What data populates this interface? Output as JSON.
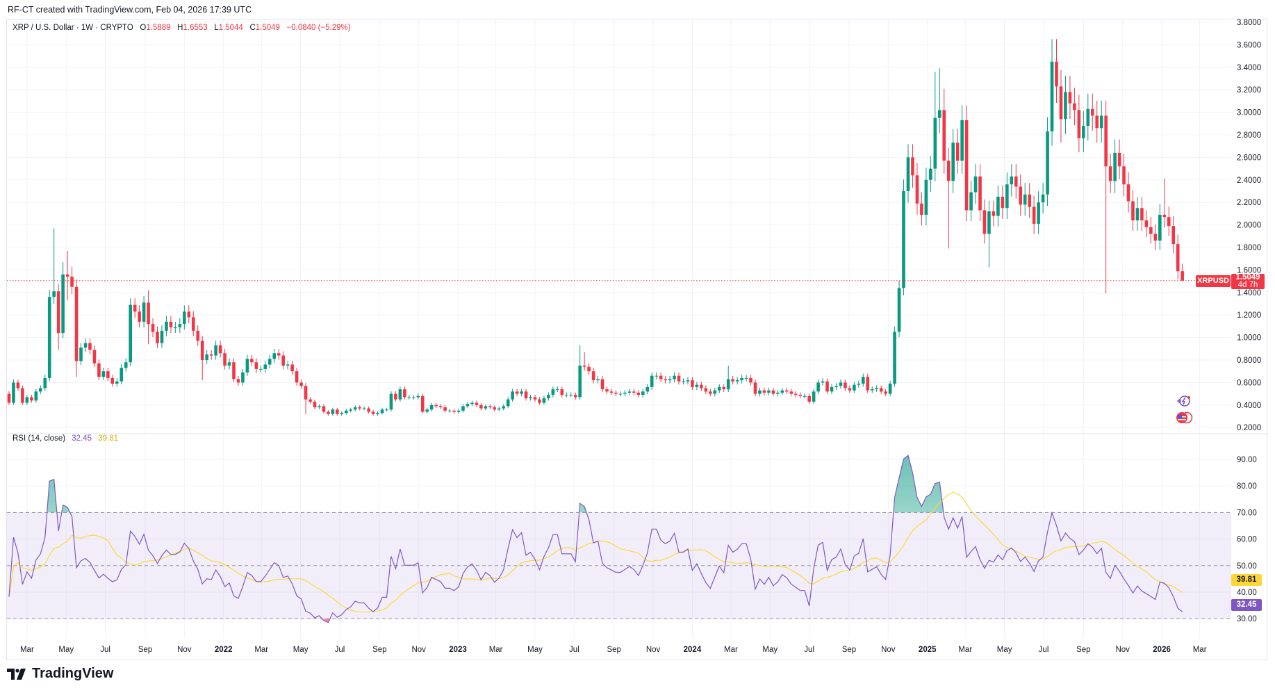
{
  "header": {
    "attribution": "RF-CT created with TradingView.com, Feb 04, 2026 17:39 UTC"
  },
  "legend": {
    "symbol": "XRP / U.S. Dollar · 1W · CRYPTO",
    "o_label": "O",
    "o": "1.5889",
    "h_label": "H",
    "h": "1.6553",
    "l_label": "L",
    "l": "1.5044",
    "c_label": "C",
    "c": "1.5049",
    "change": "−0.0840 (−5.29%)"
  },
  "rsi_legend": {
    "title": "RSI (14, close)",
    "rsi": "32.45",
    "ma": "39.81"
  },
  "price_tag": {
    "symbol": "XRPUSD",
    "price": "1.5049",
    "countdown": "4d 7h"
  },
  "logo": {
    "text": "TradingView"
  },
  "icons": [
    "ai-spark-icon",
    "us-flag-event-icon"
  ],
  "colors": {
    "up": "#089981",
    "down": "#F23645",
    "rsi": "#7E57C2",
    "rsi_ma": "#FDD835",
    "band": "#7E57C2"
  },
  "chart_data": [
    {
      "type": "candlestick",
      "interval": "1W",
      "x_start": "2021-02-01",
      "first_open": 0.5,
      "close": [
        0.42,
        0.6,
        0.55,
        0.42,
        0.47,
        0.44,
        0.52,
        0.55,
        0.64,
        1.36,
        1.41,
        1.04,
        1.56,
        1.54,
        1.45,
        0.79,
        0.91,
        0.95,
        0.89,
        0.77,
        0.65,
        0.7,
        0.64,
        0.59,
        0.61,
        0.73,
        0.78,
        1.29,
        1.23,
        1.14,
        1.31,
        1.12,
        1.05,
        0.95,
        1.06,
        1.14,
        1.09,
        1.09,
        1.12,
        1.23,
        1.18,
        1.06,
        0.97,
        0.8,
        0.85,
        0.84,
        0.93,
        0.86,
        0.75,
        0.78,
        0.63,
        0.6,
        0.69,
        0.81,
        0.78,
        0.72,
        0.72,
        0.76,
        0.81,
        0.86,
        0.84,
        0.75,
        0.76,
        0.7,
        0.6,
        0.57,
        0.45,
        0.43,
        0.38,
        0.39,
        0.34,
        0.32,
        0.36,
        0.32,
        0.33,
        0.35,
        0.36,
        0.38,
        0.37,
        0.37,
        0.34,
        0.32,
        0.33,
        0.36,
        0.36,
        0.5,
        0.45,
        0.54,
        0.47,
        0.47,
        0.47,
        0.48,
        0.34,
        0.36,
        0.4,
        0.39,
        0.38,
        0.35,
        0.35,
        0.34,
        0.35,
        0.39,
        0.41,
        0.42,
        0.4,
        0.37,
        0.39,
        0.38,
        0.36,
        0.37,
        0.39,
        0.45,
        0.52,
        0.5,
        0.52,
        0.46,
        0.47,
        0.45,
        0.42,
        0.46,
        0.49,
        0.54,
        0.54,
        0.49,
        0.49,
        0.49,
        0.47,
        0.75,
        0.74,
        0.7,
        0.62,
        0.63,
        0.54,
        0.52,
        0.51,
        0.5,
        0.5,
        0.51,
        0.52,
        0.51,
        0.49,
        0.52,
        0.56,
        0.66,
        0.66,
        0.63,
        0.62,
        0.63,
        0.66,
        0.61,
        0.61,
        0.62,
        0.56,
        0.58,
        0.55,
        0.52,
        0.5,
        0.53,
        0.56,
        0.54,
        0.63,
        0.61,
        0.62,
        0.64,
        0.64,
        0.6,
        0.5,
        0.53,
        0.51,
        0.53,
        0.5,
        0.51,
        0.53,
        0.52,
        0.5,
        0.49,
        0.48,
        0.48,
        0.43,
        0.52,
        0.6,
        0.61,
        0.52,
        0.56,
        0.57,
        0.6,
        0.55,
        0.53,
        0.58,
        0.59,
        0.65,
        0.53,
        0.54,
        0.55,
        0.52,
        0.5,
        0.59,
        1.05,
        1.44,
        2.3,
        2.6,
        2.44,
        2.19,
        2.09,
        2.4,
        2.5,
        2.95,
        3.02,
        2.57,
        2.39,
        2.73,
        2.57,
        2.93,
        2.13,
        2.29,
        2.43,
        2.13,
        1.92,
        2.12,
        2.08,
        2.25,
        2.15,
        2.36,
        2.43,
        2.34,
        2.18,
        2.27,
        2.16,
        2.01,
        2.2,
        2.27,
        2.83,
        3.45,
        3.23,
        2.94,
        3.18,
        3.08,
        3.02,
        2.77,
        2.88,
        3.03,
        2.97,
        2.86,
        2.97,
        2.52,
        2.39,
        2.64,
        2.52,
        2.36,
        2.21,
        2.04,
        2.15,
        2.04,
        1.98,
        1.92,
        1.86,
        2.09,
        2.07,
        1.99,
        1.83,
        1.5889,
        1.5049
      ],
      "high_overrides": {
        "10": 1.97,
        "12": 1.67,
        "13": 1.77,
        "14": 1.63,
        "31": 1.42,
        "127": 0.93,
        "128": 0.87,
        "160": 0.75,
        "206": 3.36,
        "207": 3.39,
        "208": 3.21,
        "232": 3.65,
        "233": 3.65,
        "257": 2.41,
        "261": 1.6553
      },
      "low_overrides": {
        "11": 0.89,
        "13": 1.33,
        "15": 0.65,
        "31": 0.94,
        "43": 0.62,
        "66": 0.32,
        "209": 1.79,
        "218": 1.62,
        "234": 2.73,
        "244": 1.39,
        "261": 1.5044
      },
      "ylim": [
        0.2,
        3.8
      ],
      "yticks": [
        "0.2000",
        "0.4000",
        "0.6000",
        "0.8000",
        "1.0000",
        "1.2000",
        "1.4000",
        "1.6000",
        "1.8000",
        "2.0000",
        "2.2000",
        "2.4000",
        "2.6000",
        "2.8000",
        "3.0000",
        "3.2000",
        "3.4000",
        "3.6000",
        "3.8000"
      ],
      "last_price": 1.5049,
      "xticks": [
        {
          "label": "Mar",
          "date": "2021-03-01"
        },
        {
          "label": "May",
          "date": "2021-05-01"
        },
        {
          "label": "Jul",
          "date": "2021-07-01"
        },
        {
          "label": "Sep",
          "date": "2021-09-01"
        },
        {
          "label": "Nov",
          "date": "2021-11-01"
        },
        {
          "label": "2022",
          "date": "2022-01-01",
          "year": true
        },
        {
          "label": "Mar",
          "date": "2022-03-01"
        },
        {
          "label": "May",
          "date": "2022-05-01"
        },
        {
          "label": "Jul",
          "date": "2022-07-01"
        },
        {
          "label": "Sep",
          "date": "2022-09-01"
        },
        {
          "label": "Nov",
          "date": "2022-11-01"
        },
        {
          "label": "2023",
          "date": "2023-01-01",
          "year": true
        },
        {
          "label": "Mar",
          "date": "2023-03-01"
        },
        {
          "label": "May",
          "date": "2023-05-01"
        },
        {
          "label": "Jul",
          "date": "2023-07-01"
        },
        {
          "label": "Sep",
          "date": "2023-09-01"
        },
        {
          "label": "Nov",
          "date": "2023-11-01"
        },
        {
          "label": "2024",
          "date": "2024-01-01",
          "year": true
        },
        {
          "label": "Mar",
          "date": "2024-03-01"
        },
        {
          "label": "May",
          "date": "2024-05-01"
        },
        {
          "label": "Jul",
          "date": "2024-07-01"
        },
        {
          "label": "Sep",
          "date": "2024-09-01"
        },
        {
          "label": "Nov",
          "date": "2024-11-01"
        },
        {
          "label": "2025",
          "date": "2025-01-01",
          "year": true
        },
        {
          "label": "Mar",
          "date": "2025-03-01"
        },
        {
          "label": "May",
          "date": "2025-05-01"
        },
        {
          "label": "Jul",
          "date": "2025-07-01"
        },
        {
          "label": "Sep",
          "date": "2025-09-01"
        },
        {
          "label": "Nov",
          "date": "2025-11-01"
        },
        {
          "label": "2026",
          "date": "2026-01-01",
          "year": true
        },
        {
          "label": "Mar",
          "date": "2026-03-01"
        }
      ]
    },
    {
      "type": "line",
      "title": "RSI (14, close)",
      "period": 14,
      "source": "close",
      "ma_period": 14,
      "ylim": [
        30,
        90
      ],
      "yticks": [
        "30.00",
        "40.00",
        "50.00",
        "60.00",
        "70.00",
        "80.00",
        "90.00"
      ],
      "bands": [
        30,
        50,
        70
      ],
      "last_rsi": 32.45,
      "last_ma": 39.81
    }
  ]
}
